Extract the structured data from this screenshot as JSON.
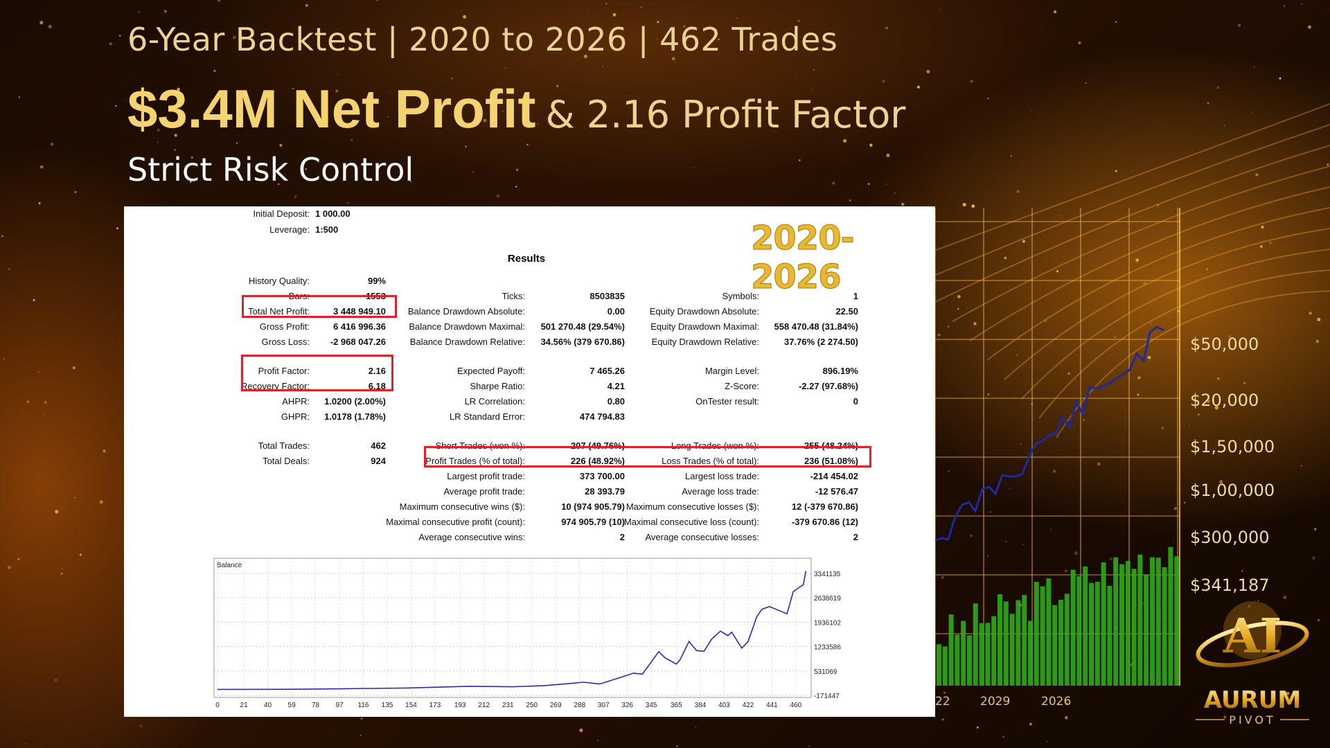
{
  "headline": {
    "line1": "6-Year Backtest | 2020 to 2026 | 462 Trades",
    "line2_bold": "$3.4M Net Profit",
    "line2_rest": "& 2.16 Profit Factor",
    "line3": "Strict Risk Control"
  },
  "report": {
    "period_badge": "2020-2026",
    "initial_deposit": {
      "label": "Initial Deposit:",
      "value": "1 000.00"
    },
    "leverage": {
      "label": "Leverage:",
      "value": "1:500"
    },
    "results_title": "Results",
    "col1": [
      {
        "label": "History Quality:",
        "value": "99%"
      },
      {
        "label": "Bars:",
        "value": "1553"
      },
      {
        "label": "Total Net Profit:",
        "value": "3 448 949.10"
      },
      {
        "label": "Gross Profit:",
        "value": "6 416 996.36"
      },
      {
        "label": "Gross Loss:",
        "value": "-2 968 047.26"
      },
      {
        "label": "Profit Factor:",
        "value": "2.16"
      },
      {
        "label": "Recovery Factor:",
        "value": "6.18"
      },
      {
        "label": "AHPR:",
        "value": "1.0200 (2.00%)"
      },
      {
        "label": "GHPR:",
        "value": "1.0178 (1.78%)"
      },
      {
        "label": "Total Trades:",
        "value": "462"
      },
      {
        "label": "Total Deals:",
        "value": "924"
      }
    ],
    "col2": [
      {
        "label": "Ticks:",
        "value": "8503835"
      },
      {
        "label": "Balance Drawdown Absolute:",
        "value": "0.00"
      },
      {
        "label": "Balance Drawdown Maximal:",
        "value": "501 270.48 (29.54%)"
      },
      {
        "label": "Balance Drawdown Relative:",
        "value": "34.56% (379 670.86)"
      },
      {
        "label": "Expected Payoff:",
        "value": "7 465.26"
      },
      {
        "label": "Sharpe Ratio:",
        "value": "4.21"
      },
      {
        "label": "LR Correlation:",
        "value": "0.80"
      },
      {
        "label": "LR Standard Error:",
        "value": "474 794.83"
      },
      {
        "label": "Short Trades (won %):",
        "value": "207 (49.76%)"
      },
      {
        "label": "Profit Trades (% of total):",
        "value": "226 (48.92%)"
      },
      {
        "label": "Largest profit trade:",
        "value": "373 700.00"
      },
      {
        "label": "Average profit trade:",
        "value": "28 393.79"
      },
      {
        "label": "Maximum consecutive wins ($):",
        "value": "10 (974 905.79)"
      },
      {
        "label": "Maximal consecutive profit (count):",
        "value": "974 905.79 (10)"
      },
      {
        "label": "Average consecutive wins:",
        "value": "2"
      }
    ],
    "col3": [
      {
        "label": "Symbols:",
        "value": "1"
      },
      {
        "label": "Equity Drawdown Absolute:",
        "value": "22.50"
      },
      {
        "label": "Equity Drawdown Maximal:",
        "value": "558 470.48 (31.84%)"
      },
      {
        "label": "Equity Drawdown Relative:",
        "value": "37.76% (2 274.50)"
      },
      {
        "label": "Margin Level:",
        "value": "896.19%"
      },
      {
        "label": "Z-Score:",
        "value": "-2.27 (97.68%)"
      },
      {
        "label": "OnTester result:",
        "value": "0"
      },
      {
        "label": "Long Trades (won %):",
        "value": "255 (48.24%)"
      },
      {
        "label": "Loss Trades (% of total):",
        "value": "236 (51.08%)"
      },
      {
        "label": "Largest loss trade:",
        "value": "-214 454.02"
      },
      {
        "label": "Average loss trade:",
        "value": "-12 576.47"
      },
      {
        "label": "Maximum consecutive losses ($):",
        "value": "12 (-379 670.86)"
      },
      {
        "label": "Maximal consecutive loss (count):",
        "value": "-379 670.86 (12)"
      },
      {
        "label": "Average consecutive losses:",
        "value": "2"
      }
    ],
    "highlight_color": "#e0202a"
  },
  "chart_data": {
    "type": "line",
    "title": "Balance",
    "line_color": "#2a2ab8",
    "grid": true,
    "x_ticks": [
      "0",
      "21",
      "40",
      "59",
      "78",
      "97",
      "116",
      "135",
      "154",
      "173",
      "193",
      "212",
      "231",
      "250",
      "269",
      "288",
      "307",
      "326",
      "345",
      "365",
      "384",
      "403",
      "422",
      "441",
      "460"
    ],
    "y_ticks": [
      "3341135",
      "2638619",
      "1936102",
      "1233586",
      "531069",
      "-171447"
    ],
    "ylim": [
      -171447,
      3341135
    ],
    "xlim": [
      0,
      470
    ],
    "x": [
      0,
      60,
      100,
      150,
      200,
      235,
      260,
      280,
      291,
      304,
      320,
      331,
      338,
      351,
      356,
      365,
      368,
      375,
      381,
      387,
      393,
      400,
      406,
      409,
      417,
      422,
      429,
      433,
      439,
      453,
      458,
      462,
      466,
      468
    ],
    "y": [
      1000,
      5000,
      20000,
      40000,
      90000,
      76000,
      110000,
      170000,
      207000,
      155000,
      340000,
      470000,
      440000,
      1090000,
      910000,
      730000,
      860000,
      1380000,
      1120000,
      1100000,
      1450000,
      1680000,
      1550000,
      1650000,
      1190000,
      1380000,
      2100000,
      2310000,
      2390000,
      2180000,
      2820000,
      2920000,
      3020000,
      3410000
    ]
  },
  "background_chart": {
    "y_labels": [
      "$50,000",
      "$20,000",
      "$1,50,000",
      "$1,00,000",
      "$300,000",
      "$341,187"
    ],
    "x_labels": [
      "22",
      "2029",
      "2026"
    ]
  },
  "brand": {
    "name": "AURUM",
    "sub": "PIVOT",
    "emblem": "AI"
  }
}
